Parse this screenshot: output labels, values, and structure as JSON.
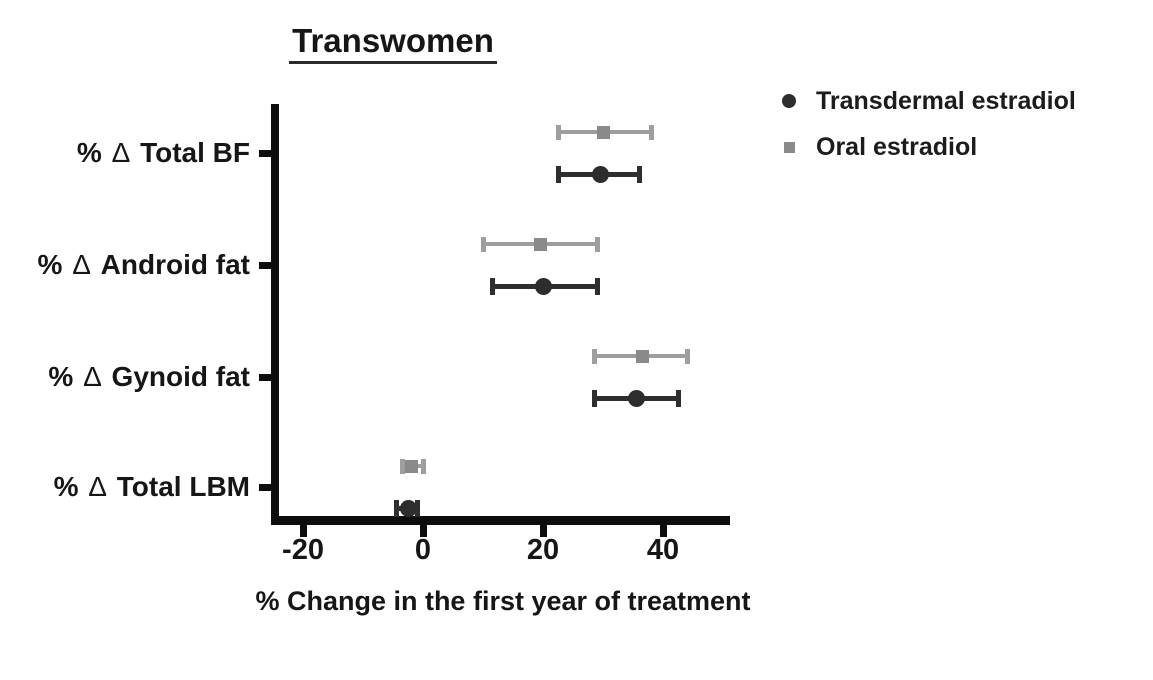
{
  "chart_data": {
    "type": "scatter",
    "subtype": "dot-plot-with-error-bars",
    "title": "Transwomen",
    "xlabel": "% Change in the first year of treatment",
    "ylabel": "",
    "xlim": [
      -25,
      51
    ],
    "xticks": [
      "-20",
      "0",
      "20",
      "40"
    ],
    "xtick_values": [
      -20,
      0,
      20,
      40
    ],
    "grid": false,
    "legend_position": "top-right",
    "categories": [
      "% Δ Total BF",
      "% Δ Android fat",
      "% Δ Gynoid fat",
      "% Δ Total LBM"
    ],
    "series": [
      {
        "name": "Transdermal estradiol",
        "marker": "circle",
        "marker_color": "#2d2d2d",
        "line_color": "#2e2e2e",
        "values": [
          29.5,
          20,
          35.5,
          -2.5
        ],
        "ci_low": [
          22.5,
          11.5,
          28.5,
          -4.5
        ],
        "ci_high": [
          36,
          29,
          42.5,
          -1
        ]
      },
      {
        "name": "Oral estradiol",
        "marker": "square",
        "marker_color": "#8a8a8a",
        "line_color": "#9e9e9e",
        "values": [
          30,
          19.5,
          36.5,
          -2
        ],
        "ci_low": [
          22.5,
          10,
          28.5,
          -3.5
        ],
        "ci_high": [
          38,
          29,
          44,
          0
        ]
      }
    ],
    "axis_color": "#0d0d0d"
  }
}
